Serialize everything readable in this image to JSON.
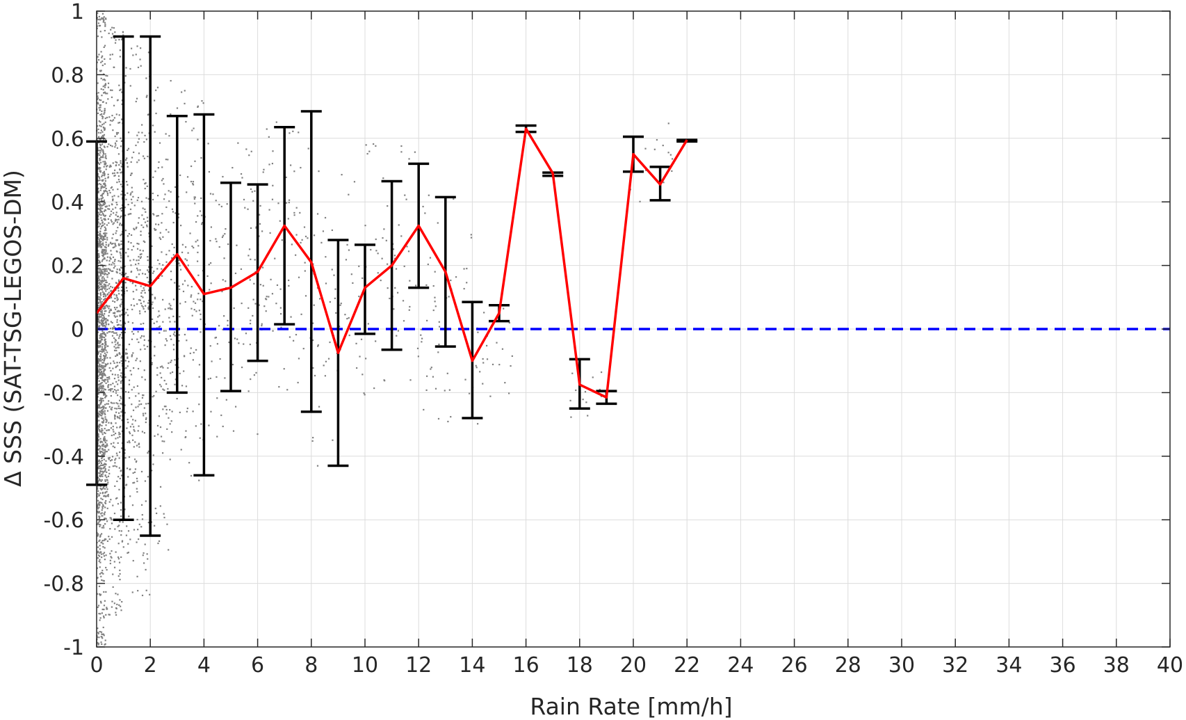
{
  "chart_data": {
    "type": "line",
    "title": "",
    "xlabel": "Rain Rate [mm/h]",
    "ylabel": "Δ SSS (SAT-TSG-LEGOS-DM)",
    "xlim": [
      0,
      40
    ],
    "ylim": [
      -1,
      1
    ],
    "xticks": [
      0,
      2,
      4,
      6,
      8,
      10,
      12,
      14,
      16,
      18,
      20,
      22,
      24,
      26,
      28,
      30,
      32,
      34,
      36,
      38,
      40
    ],
    "xtick_labels": [
      "0",
      "2",
      "4",
      "6",
      "8",
      "10",
      "12",
      "14",
      "16",
      "18",
      "20",
      "22",
      "24",
      "26",
      "28",
      "30",
      "32",
      "34",
      "36",
      "38",
      "40"
    ],
    "yticks": [
      -1,
      -0.8,
      -0.6,
      -0.4,
      -0.2,
      0,
      0.2,
      0.4,
      0.6,
      0.8,
      1
    ],
    "ytick_labels": [
      "-1",
      "-0.8",
      "-0.6",
      "-0.4",
      "-0.2",
      "0",
      "0.2",
      "0.4",
      "0.6",
      "0.8",
      "1"
    ],
    "grid": true,
    "series": [
      {
        "kind": "scatter",
        "color": "#808080",
        "description_role": "individual collocations",
        "clusters": [
          {
            "x_range": [
              0,
              0.35
            ],
            "y_range": [
              -1,
              1
            ],
            "count": 1400
          },
          {
            "x_range": [
              0.35,
              1.0
            ],
            "y_range": [
              -0.9,
              0.95
            ],
            "count": 700
          },
          {
            "x_range": [
              1.0,
              2.0
            ],
            "y_range": [
              -0.85,
              0.9
            ],
            "count": 400
          },
          {
            "x_range": [
              2.0,
              3.0
            ],
            "y_range": [
              -0.7,
              0.8
            ],
            "count": 200
          },
          {
            "x_range": [
              3.0,
              4.0
            ],
            "y_range": [
              -0.5,
              0.75
            ],
            "count": 120
          },
          {
            "x_range": [
              4.0,
              6.0
            ],
            "y_range": [
              -0.35,
              0.6
            ],
            "count": 110
          },
          {
            "x_range": [
              6.0,
              8.0
            ],
            "y_range": [
              -0.2,
              0.7
            ],
            "count": 90
          },
          {
            "x_range": [
              8.0,
              10.0
            ],
            "y_range": [
              -0.45,
              0.5
            ],
            "count": 70
          },
          {
            "x_range": [
              10.0,
              12.0
            ],
            "y_range": [
              -0.2,
              0.6
            ],
            "count": 60
          },
          {
            "x_range": [
              12.0,
              14.0
            ],
            "y_range": [
              -0.3,
              0.45
            ],
            "count": 50
          },
          {
            "x_range": [
              14.0,
              15.5
            ],
            "y_range": [
              -0.3,
              0.1
            ],
            "count": 25
          },
          {
            "x_range": [
              17.5,
              19.0
            ],
            "y_range": [
              -0.3,
              -0.1
            ],
            "count": 12
          },
          {
            "x_range": [
              19.8,
              21.5
            ],
            "y_range": [
              0.4,
              0.66
            ],
            "count": 15
          }
        ]
      },
      {
        "kind": "errorbar",
        "color": "#000000",
        "x": [
          0,
          1,
          2,
          3,
          4,
          5,
          6,
          7,
          8,
          9,
          10,
          11,
          12,
          13,
          14,
          15,
          16,
          17,
          18,
          19,
          20,
          21,
          22
        ],
        "lower": [
          -0.49,
          -0.6,
          -0.65,
          -0.2,
          -0.46,
          -0.195,
          -0.1,
          0.015,
          -0.26,
          -0.43,
          -0.015,
          -0.065,
          0.13,
          -0.055,
          -0.28,
          0.025,
          0.62,
          0.482,
          -0.25,
          -0.235,
          0.495,
          0.405,
          0.59
        ],
        "upper": [
          0.59,
          0.92,
          0.92,
          0.67,
          0.675,
          0.46,
          0.455,
          0.635,
          0.685,
          0.28,
          0.265,
          0.465,
          0.52,
          0.415,
          0.085,
          0.075,
          0.64,
          0.492,
          -0.095,
          -0.195,
          0.605,
          0.51,
          0.595
        ]
      },
      {
        "kind": "line",
        "color": "#ff0000",
        "x": [
          0,
          1,
          2,
          3,
          4,
          5,
          6,
          7,
          8,
          9,
          10,
          11,
          12,
          13,
          14,
          15,
          16,
          17,
          18,
          19,
          20,
          21,
          22
        ],
        "y": [
          0.05,
          0.16,
          0.135,
          0.235,
          0.11,
          0.13,
          0.18,
          0.325,
          0.21,
          -0.075,
          0.13,
          0.2,
          0.325,
          0.18,
          -0.1,
          0.05,
          0.63,
          0.49,
          -0.175,
          -0.215,
          0.55,
          0.455,
          0.595
        ]
      },
      {
        "kind": "reference-line",
        "color": "#0000ff",
        "style": "dashed",
        "y": 0
      }
    ],
    "colors": {
      "axis": "#262626",
      "grid": "#dcdcdc",
      "scatter": "#808080",
      "errorbar": "#000000",
      "mean_line": "#ff0000",
      "zero_line": "#0000ff"
    }
  }
}
